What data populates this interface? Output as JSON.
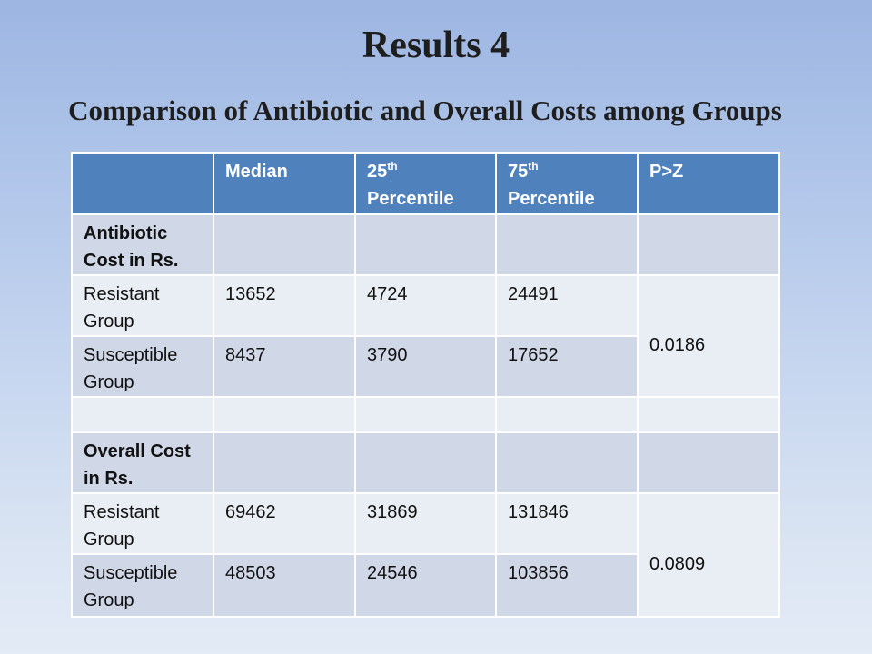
{
  "slide": {
    "title": "Results 4",
    "subtitle": "Comparison of Antibiotic and Overall Costs among Groups"
  },
  "theme": {
    "header_fill": "#4F81BD",
    "band_dark": "#D0D8E8",
    "band_light": "#E9EDF4",
    "header_text": "#FFFFFF"
  },
  "table": {
    "header": {
      "median": "Median",
      "p25": {
        "number": "25",
        "ordinal": "th",
        "label": "Percentile"
      },
      "p75": {
        "number": "75",
        "ordinal": "th",
        "label": "Percentile"
      },
      "pz": "P>Z"
    },
    "sections": [
      {
        "heading": "Antibiotic Cost in Rs.",
        "p_value": "0.0186",
        "rows": [
          {
            "group": "Resistant Group",
            "median": "13652",
            "p25": "4724",
            "p75": "24491"
          },
          {
            "group": "Susceptible Group",
            "median": "8437",
            "p25": "3790",
            "p75": "17652"
          }
        ]
      },
      {
        "heading": "Overall Cost in Rs.",
        "p_value": "0.0809",
        "rows": [
          {
            "group": "Resistant Group",
            "median": "69462",
            "p25": "31869",
            "p75": "131846"
          },
          {
            "group": "Susceptible Group",
            "median": "48503",
            "p25": "24546",
            "p75": "103856"
          }
        ]
      }
    ]
  }
}
